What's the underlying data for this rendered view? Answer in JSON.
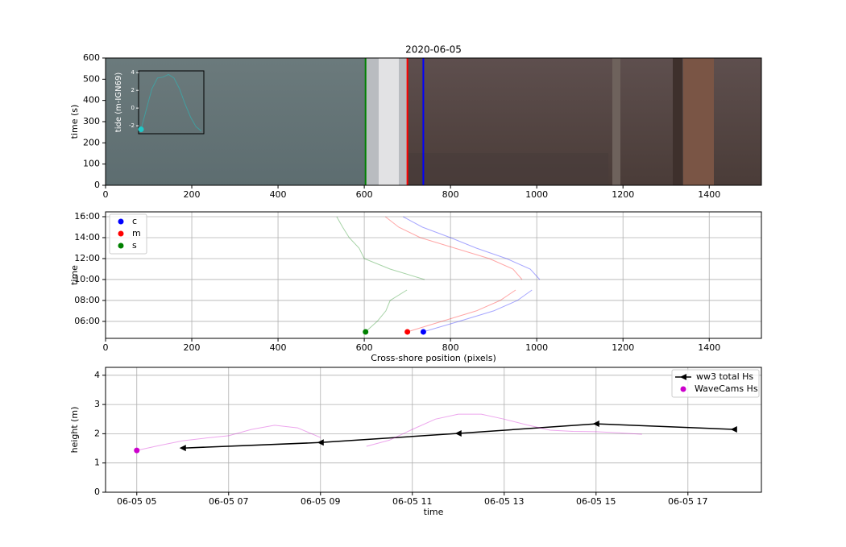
{
  "chart_data": [
    {
      "type": "image",
      "title": "2020-06-05",
      "ylabel": "time (s)",
      "xlim": [
        0,
        1521
      ],
      "ylim": [
        0,
        600
      ],
      "xticks": [
        0,
        200,
        400,
        600,
        800,
        1000,
        1200,
        1400
      ],
      "yticks": [
        0,
        100,
        200,
        300,
        400,
        500,
        600
      ],
      "grid": false,
      "vlines": [
        {
          "color": "#008000",
          "value": 603
        },
        {
          "color": "#ff0000",
          "value": 700
        },
        {
          "color": "#0000ff",
          "value": 737
        }
      ],
      "inset": {
        "type": "line",
        "ylabel": "tide (m-IGN69)",
        "ylim": [
          -2.9,
          4.2
        ],
        "yticks": [
          -2,
          0,
          2,
          4
        ],
        "color": "#20c8c8",
        "line_alpha": 0.5,
        "marker": "o",
        "marker_on": "first",
        "values": [
          -2.4,
          -0.1,
          2.2,
          3.4,
          3.5,
          3.8,
          3.4,
          2.2,
          0.5,
          -1.0,
          -2.1,
          -2.6
        ]
      }
    },
    {
      "type": "line",
      "orientation": "horizontal",
      "xlabel": "Cross-shore position (pixels)",
      "ylabel": "time",
      "xlim": [
        0,
        1521
      ],
      "ylim": [
        4.38,
        16.46
      ],
      "xticks": [
        0,
        200,
        400,
        600,
        800,
        1000,
        1200,
        1400
      ],
      "yticks": [
        {
          "value": 6,
          "label": "06:00"
        },
        {
          "value": 8,
          "label": "08:00"
        },
        {
          "value": 10,
          "label": "10:00"
        },
        {
          "value": 12,
          "label": "12:00"
        },
        {
          "value": 14,
          "label": "14:00"
        },
        {
          "value": 16,
          "label": "16:00"
        }
      ],
      "grid": true,
      "legend": "upper left",
      "line_alpha": 0.35,
      "marker": "o",
      "marker_on": "first",
      "y": [
        5,
        6,
        7,
        8,
        9,
        9.5,
        10,
        11,
        12,
        13,
        14,
        15,
        16
      ],
      "series": [
        {
          "name": "c",
          "color": "#0000ff",
          "values": [
            737,
            820,
            900,
            955,
            989,
            null,
            1007,
            985,
            930,
            860,
            800,
            735,
            690
          ]
        },
        {
          "name": "m",
          "color": "#ff0000",
          "values": [
            700,
            780,
            860,
            915,
            951,
            null,
            966,
            945,
            890,
            810,
            730,
            680,
            649
          ]
        },
        {
          "name": "s",
          "color": "#008000",
          "values": [
            603,
            630,
            650,
            660,
            699,
            null,
            740,
            660,
            600,
            588,
            565,
            550,
            536
          ]
        }
      ]
    },
    {
      "type": "line",
      "xlabel": "time",
      "ylabel": "height (m)",
      "xlim": [
        4.32,
        18.6
      ],
      "ylim": [
        0,
        4.27
      ],
      "xticks": [
        {
          "value": 5,
          "label": "06-05 05"
        },
        {
          "value": 7,
          "label": "06-05 07"
        },
        {
          "value": 9,
          "label": "06-05 09"
        },
        {
          "value": 11,
          "label": "06-05 11"
        },
        {
          "value": 13,
          "label": "06-05 13"
        },
        {
          "value": 15,
          "label": "06-05 15"
        },
        {
          "value": 17,
          "label": "06-05 17"
        }
      ],
      "yticks": [
        0,
        1,
        2,
        3,
        4
      ],
      "grid": true,
      "legend": "upper right",
      "series": [
        {
          "name": "ww3 total Hs",
          "color": "#000000",
          "marker": "<",
          "marker_on": "all",
          "line_alpha": 1,
          "x": [
            6,
            9,
            12,
            15,
            18
          ],
          "values": [
            1.51,
            1.7,
            2.01,
            2.34,
            2.15
          ]
        },
        {
          "name": "WaveCams Hs",
          "color": "#cc00cc",
          "marker": "o",
          "marker_on": "first",
          "line_alpha": 0.35,
          "x": [
            5,
            5.5,
            6,
            6.5,
            7,
            7.5,
            8,
            8.5,
            9,
            9.5,
            10,
            10.5,
            11,
            11.5,
            12,
            12.5,
            13,
            13.5,
            14,
            14.5,
            15,
            15.5,
            16
          ],
          "values": [
            1.43,
            1.6,
            1.76,
            1.85,
            1.93,
            2.15,
            2.29,
            2.2,
            1.87,
            null,
            1.57,
            1.78,
            2.15,
            2.5,
            2.67,
            2.67,
            2.5,
            2.3,
            2.12,
            2.08,
            2.07,
            2.03,
            1.98
          ]
        }
      ]
    }
  ]
}
